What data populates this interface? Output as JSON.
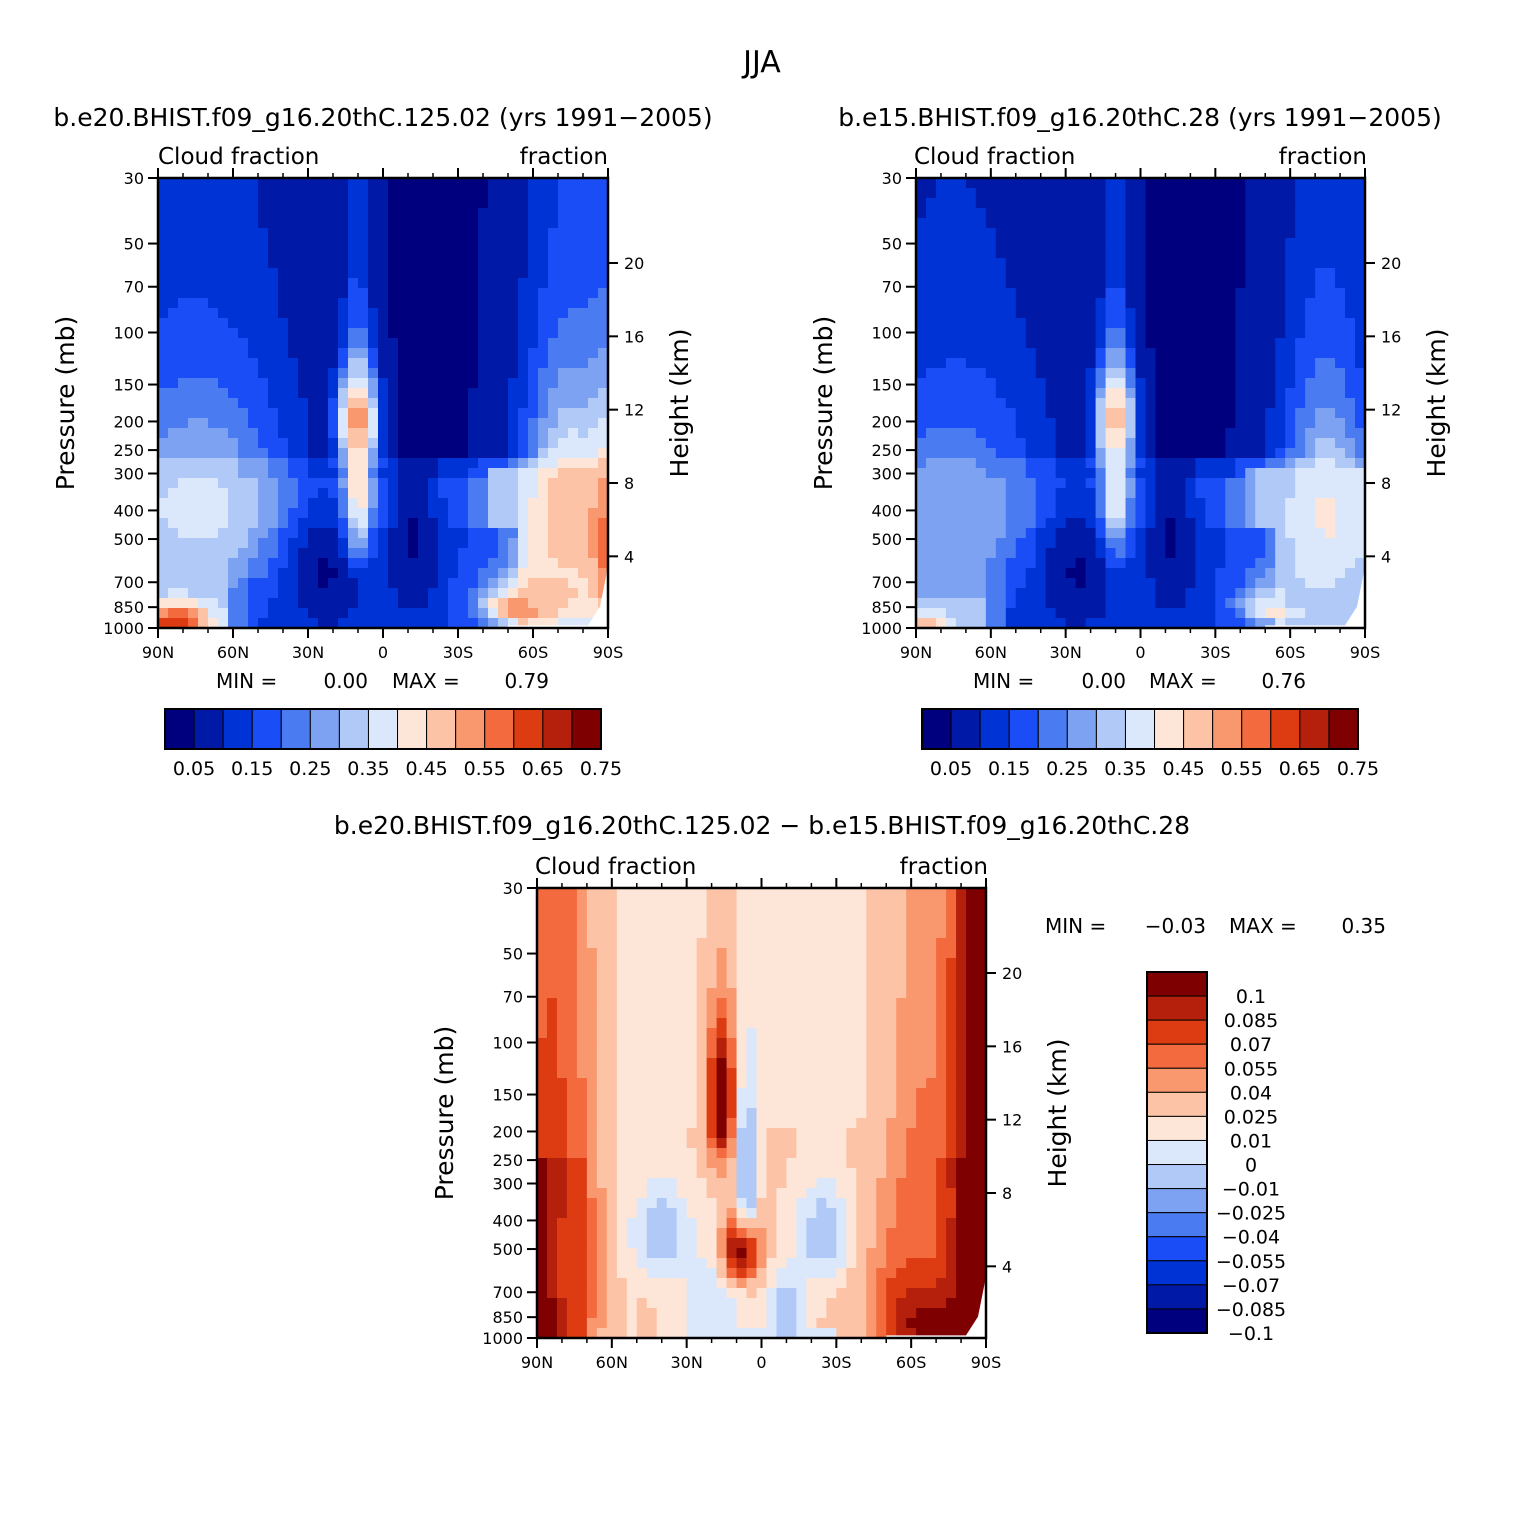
{
  "figure_title": "JJA",
  "palette": {
    "abs": [
      "#00007f",
      "#0019a6",
      "#0033d6",
      "#1a4df5",
      "#4a7bf0",
      "#7da2f2",
      "#b0c9f7",
      "#dbe8fb",
      "#fde6d8",
      "#fcc3a6",
      "#f9986f",
      "#f26a3d",
      "#dd3b12",
      "#b4200b",
      "#7f0000"
    ],
    "diff": [
      "#00007f",
      "#0019a6",
      "#0033d6",
      "#1a4df5",
      "#4a7bf0",
      "#7da2f2",
      "#b0c9f7",
      "#dbe8fb",
      "#fde6d8",
      "#fcc3a6",
      "#f9986f",
      "#f26a3d",
      "#dd3b12",
      "#b4200b",
      "#7f0000"
    ]
  },
  "chart_data": [
    {
      "type": "heatmap",
      "id": "panel1",
      "title": "b.e20.BHIST.f09_g16.20thC.125.02 (yrs 1991−2005)",
      "left_label": "Cloud fraction",
      "right_label": "fraction",
      "xlabel": "",
      "ylabel": "Pressure (mb)",
      "y2label": "Height (km)",
      "x_ticks": [
        "90N",
        "60N",
        "30N",
        "0",
        "30S",
        "60S",
        "90S"
      ],
      "x_range": [
        90,
        -90
      ],
      "y_ticks": [
        30,
        50,
        70,
        100,
        150,
        200,
        250,
        300,
        400,
        500,
        700,
        850,
        1000
      ],
      "y_range": [
        30,
        1000
      ],
      "height_ticks": [
        20,
        16,
        12,
        8,
        4
      ],
      "min_label": "MIN =",
      "min": "0.00",
      "max_label": "MAX =",
      "max": "0.79",
      "colorbar_labels": [
        "0.05",
        "0.15",
        "0.25",
        "0.35",
        "0.45",
        "0.55",
        "0.65",
        "0.75"
      ],
      "features": [
        {
          "lat": 75,
          "p": 400,
          "v": 0.33,
          "wlat": 30,
          "wp": 220
        },
        {
          "lat": 83,
          "p": 950,
          "v": 0.62,
          "wlat": 10,
          "wp": 90
        },
        {
          "lat": 22,
          "p": 650,
          "v": 0.02,
          "wlat": 12,
          "wp": 260
        },
        {
          "lat": -13,
          "p": 500,
          "v": 0.02,
          "wlat": 8,
          "wp": 300
        },
        {
          "lat": 10,
          "p": 200,
          "v": 0.66,
          "wlat": 5,
          "wp": 45
        },
        {
          "lat": 10,
          "p": 330,
          "v": 0.42,
          "wlat": 4,
          "wp": 160
        },
        {
          "lat": -55,
          "p": 860,
          "v": 0.72,
          "wlat": 8,
          "wp": 70
        },
        {
          "lat": -65,
          "p": 800,
          "v": 0.45,
          "wlat": 16,
          "wp": 140
        },
        {
          "lat": -75,
          "p": 420,
          "v": 0.47,
          "wlat": 14,
          "wp": 230
        },
        {
          "lat": -90,
          "p": 550,
          "v": 0.55,
          "wlat": 5,
          "wp": 250
        }
      ]
    },
    {
      "type": "heatmap",
      "id": "panel2",
      "title": "b.e15.BHIST.f09_g16.20thC.28 (yrs 1991−2005)",
      "left_label": "Cloud fraction",
      "right_label": "fraction",
      "xlabel": "",
      "ylabel": "Pressure (mb)",
      "y2label": "Height (km)",
      "x_ticks": [
        "90N",
        "60N",
        "30N",
        "0",
        "30S",
        "60S",
        "90S"
      ],
      "x_range": [
        90,
        -90
      ],
      "y_ticks": [
        30,
        50,
        70,
        100,
        150,
        200,
        250,
        300,
        400,
        500,
        700,
        850,
        1000
      ],
      "y_range": [
        30,
        1000
      ],
      "height_ticks": [
        20,
        16,
        12,
        8,
        4
      ],
      "min_label": "MIN =",
      "min": "0.00",
      "max_label": "MAX =",
      "max": "0.76",
      "colorbar_labels": [
        "0.05",
        "0.15",
        "0.25",
        "0.35",
        "0.45",
        "0.55",
        "0.65",
        "0.75"
      ],
      "features": [
        {
          "lat": 75,
          "p": 400,
          "v": 0.25,
          "wlat": 30,
          "wp": 220
        },
        {
          "lat": 85,
          "p": 970,
          "v": 0.45,
          "wlat": 8,
          "wp": 70
        },
        {
          "lat": 25,
          "p": 650,
          "v": 0.02,
          "wlat": 12,
          "wp": 260
        },
        {
          "lat": -13,
          "p": 500,
          "v": 0.02,
          "wlat": 8,
          "wp": 300
        },
        {
          "lat": 10,
          "p": 200,
          "v": 0.58,
          "wlat": 5,
          "wp": 50
        },
        {
          "lat": 10,
          "p": 330,
          "v": 0.38,
          "wlat": 4,
          "wp": 160
        },
        {
          "lat": -55,
          "p": 850,
          "v": 0.6,
          "wlat": 8,
          "wp": 70
        },
        {
          "lat": -65,
          "p": 800,
          "v": 0.3,
          "wlat": 16,
          "wp": 140
        },
        {
          "lat": -75,
          "p": 420,
          "v": 0.38,
          "wlat": 14,
          "wp": 230
        }
      ]
    },
    {
      "type": "heatmap",
      "id": "panel3",
      "title": "b.e20.BHIST.f09_g16.20thC.125.02 − b.e15.BHIST.f09_g16.20thC.28",
      "left_label": "Cloud fraction",
      "right_label": "fraction",
      "xlabel": "",
      "ylabel": "Pressure (mb)",
      "y2label": "Height (km)",
      "x_ticks": [
        "90N",
        "60N",
        "30N",
        "0",
        "30S",
        "60S",
        "90S"
      ],
      "x_range": [
        90,
        -90
      ],
      "y_ticks": [
        30,
        50,
        70,
        100,
        150,
        200,
        250,
        300,
        400,
        500,
        700,
        850,
        1000
      ],
      "y_range": [
        30,
        1000
      ],
      "height_ticks": [
        20,
        16,
        12,
        8,
        4
      ],
      "min_label": "MIN =",
      "min": "−0.03",
      "max_label": "MAX =",
      "max": "0.35",
      "colorbar_labels": [
        "0.1",
        "0.085",
        "0.07",
        "0.055",
        "0.04",
        "0.025",
        "0.01",
        "0",
        "−0.01",
        "−0.025",
        "−0.04",
        "−0.055",
        "−0.07",
        "−0.085",
        "−0.1"
      ],
      "features": [
        {
          "lat": 85,
          "p": 700,
          "v": 0.11,
          "wlat": 8,
          "wp": 500
        },
        {
          "lat": 75,
          "p": 600,
          "v": 0.06,
          "wlat": 8,
          "wp": 400
        },
        {
          "lat": 40,
          "p": 450,
          "v": -0.02,
          "wlat": 8,
          "wp": 120
        },
        {
          "lat": 20,
          "p": 800,
          "v": -0.01,
          "wlat": 10,
          "wp": 250
        },
        {
          "lat": 16,
          "p": 160,
          "v": 0.11,
          "wlat": 4,
          "wp": 60
        },
        {
          "lat": 8,
          "p": 500,
          "v": 0.11,
          "wlat": 5,
          "wp": 90
        },
        {
          "lat": 6,
          "p": 280,
          "v": -0.03,
          "wlat": 3,
          "wp": 120
        },
        {
          "lat": -10,
          "p": 800,
          "v": -0.02,
          "wlat": 6,
          "wp": 150
        },
        {
          "lat": -25,
          "p": 450,
          "v": -0.02,
          "wlat": 8,
          "wp": 120
        },
        {
          "lat": -65,
          "p": 800,
          "v": 0.11,
          "wlat": 12,
          "wp": 280
        },
        {
          "lat": -85,
          "p": 400,
          "v": 0.11,
          "wlat": 8,
          "wp": 700
        },
        {
          "lat": -65,
          "p": 400,
          "v": 0.05,
          "wlat": 10,
          "wp": 300
        }
      ]
    }
  ]
}
